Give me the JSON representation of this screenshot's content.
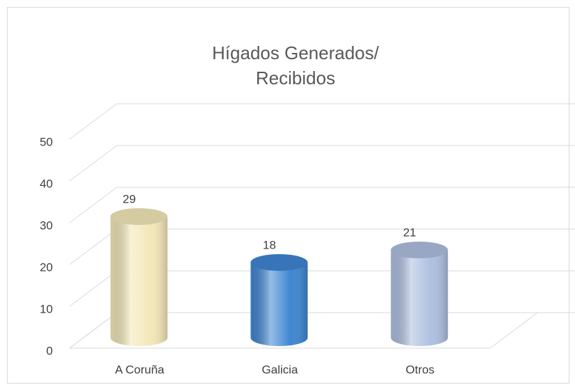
{
  "chart_data": {
    "type": "bar",
    "title": "Hígados Generados/ Recibidos",
    "categories": [
      "A Coruña",
      "Galicia",
      "Otros"
    ],
    "values": [
      29,
      18,
      21
    ],
    "colors": [
      "#f3e7b8",
      "#3f86d2",
      "#aebfe0"
    ],
    "ylim": [
      0,
      50
    ],
    "yticks": [
      0,
      10,
      20,
      30,
      40,
      50
    ],
    "grid": true
  }
}
